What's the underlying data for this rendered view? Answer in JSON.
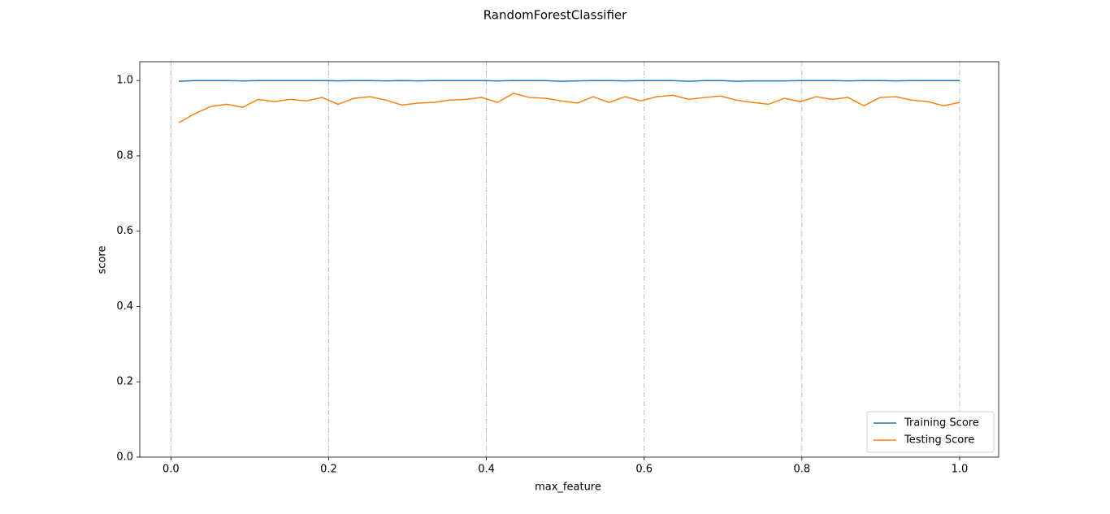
{
  "chart_data": {
    "type": "line",
    "title": "RandomForestClassifier",
    "x_label": "max_feature",
    "y_label": "score",
    "x": [
      0.01,
      0.0302,
      0.0504,
      0.0706,
      0.0908,
      0.111,
      0.1312,
      0.1514,
      0.1716,
      0.1918,
      0.212,
      0.2322,
      0.2524,
      0.2727,
      0.2929,
      0.3131,
      0.3333,
      0.3535,
      0.3737,
      0.3939,
      0.4141,
      0.4343,
      0.4545,
      0.4747,
      0.4949,
      0.5151,
      0.5353,
      0.5555,
      0.5757,
      0.5959,
      0.6161,
      0.6363,
      0.6565,
      0.6767,
      0.6969,
      0.7171,
      0.7373,
      0.7575,
      0.7777,
      0.7979,
      0.8181,
      0.8383,
      0.8585,
      0.8787,
      0.8989,
      0.9191,
      0.9393,
      0.9595,
      0.9797,
      1.0
    ],
    "series": [
      {
        "name": "Training Score",
        "color": "#1f77b4",
        "values": [
          0.998,
          1.0,
          1.0,
          1.0,
          0.999,
          1.0,
          1.0,
          1.0,
          1.0,
          1.0,
          0.999,
          1.0,
          1.0,
          0.999,
          1.0,
          0.999,
          1.0,
          1.0,
          1.0,
          1.0,
          0.999,
          1.0,
          1.0,
          1.0,
          0.998,
          0.999,
          1.0,
          1.0,
          0.999,
          1.0,
          1.0,
          1.0,
          0.998,
          1.0,
          1.0,
          0.998,
          0.999,
          0.999,
          0.999,
          1.0,
          1.0,
          1.0,
          0.999,
          1.0,
          1.0,
          0.999,
          1.0,
          1.0,
          1.0,
          1.0
        ]
      },
      {
        "name": "Testing Score",
        "color": "#ff7f0e",
        "values": [
          0.888,
          0.912,
          0.931,
          0.937,
          0.929,
          0.95,
          0.944,
          0.95,
          0.946,
          0.955,
          0.937,
          0.953,
          0.957,
          0.948,
          0.935,
          0.94,
          0.942,
          0.948,
          0.95,
          0.955,
          0.942,
          0.966,
          0.955,
          0.953,
          0.946,
          0.94,
          0.957,
          0.942,
          0.957,
          0.946,
          0.957,
          0.961,
          0.95,
          0.955,
          0.959,
          0.948,
          0.942,
          0.937,
          0.953,
          0.944,
          0.957,
          0.95,
          0.955,
          0.933,
          0.955,
          0.957,
          0.948,
          0.944,
          0.933,
          0.942
        ]
      }
    ],
    "xlim": [
      -0.0395,
      1.0495
    ],
    "xticks": [
      {
        "value": 0,
        "label": "0.0"
      },
      0.2,
      0.4,
      0.6,
      0.8,
      {
        "value": 1,
        "label": "1.0"
      }
    ],
    "ylim": [
      0,
      1.05
    ],
    "yticks": [
      {
        "value": 0,
        "label": "0.0"
      },
      0.2,
      0.4,
      0.6,
      0.8,
      {
        "value": 1,
        "label": "1.0"
      }
    ],
    "grid": "x",
    "legend": "lower right"
  }
}
